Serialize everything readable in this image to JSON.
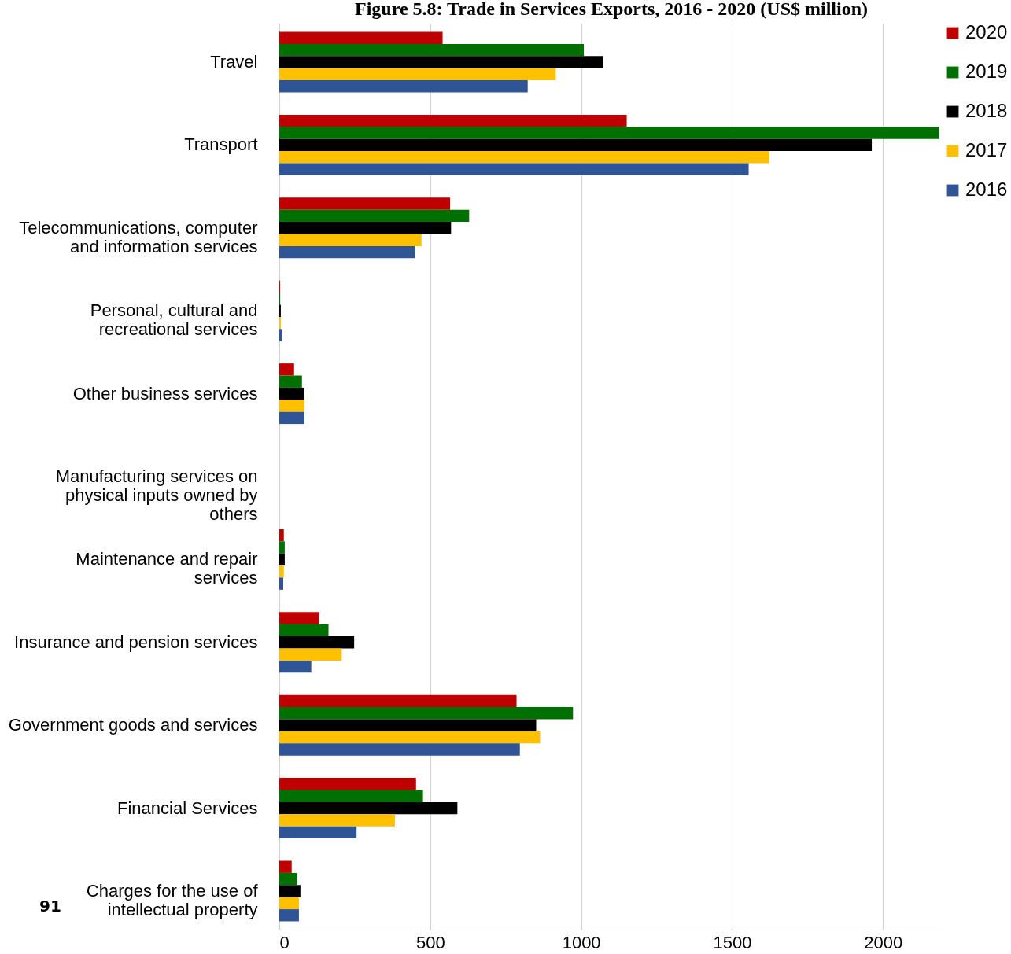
{
  "chart_data": {
    "type": "bar",
    "orientation": "horizontal",
    "title": "Figure 5.8: Trade in Services Exports, 2016 - 2020 (US$ million)",
    "categories": [
      "Travel",
      "Transport",
      "Telecommunications, computer and information services",
      "Personal, cultural and recreational services",
      "Other business services",
      "Manufacturing services on physical inputs owned by others",
      "Maintenance and repair services",
      "Insurance and pension services",
      "Government goods and services",
      "Financial Services",
      "Charges for the use of intellectual property"
    ],
    "series": [
      {
        "name": "2020",
        "color": "#c00000",
        "values": [
          541,
          1151,
          566,
          3,
          49,
          0,
          15,
          132,
          786,
          453,
          41
        ]
      },
      {
        "name": "2019",
        "color": "#007000",
        "values": [
          1009,
          2186,
          629,
          3,
          75,
          0,
          18,
          163,
          973,
          476,
          59
        ]
      },
      {
        "name": "2018",
        "color": "#000000",
        "values": [
          1073,
          1963,
          569,
          5,
          83,
          0,
          18,
          248,
          851,
          590,
          70
        ]
      },
      {
        "name": "2017",
        "color": "#ffc000",
        "values": [
          916,
          1624,
          471,
          5,
          83,
          0,
          15,
          207,
          864,
          383,
          65
        ]
      },
      {
        "name": "2016",
        "color": "#2f5597",
        "values": [
          823,
          1555,
          450,
          10,
          83,
          0,
          13,
          106,
          797,
          256,
          65
        ]
      }
    ],
    "xlim": [
      0,
      2200
    ],
    "xticks": [
      0,
      500,
      1000,
      1500,
      2000
    ],
    "grid": "x",
    "legend": "right",
    "annotations": [
      "91"
    ]
  }
}
